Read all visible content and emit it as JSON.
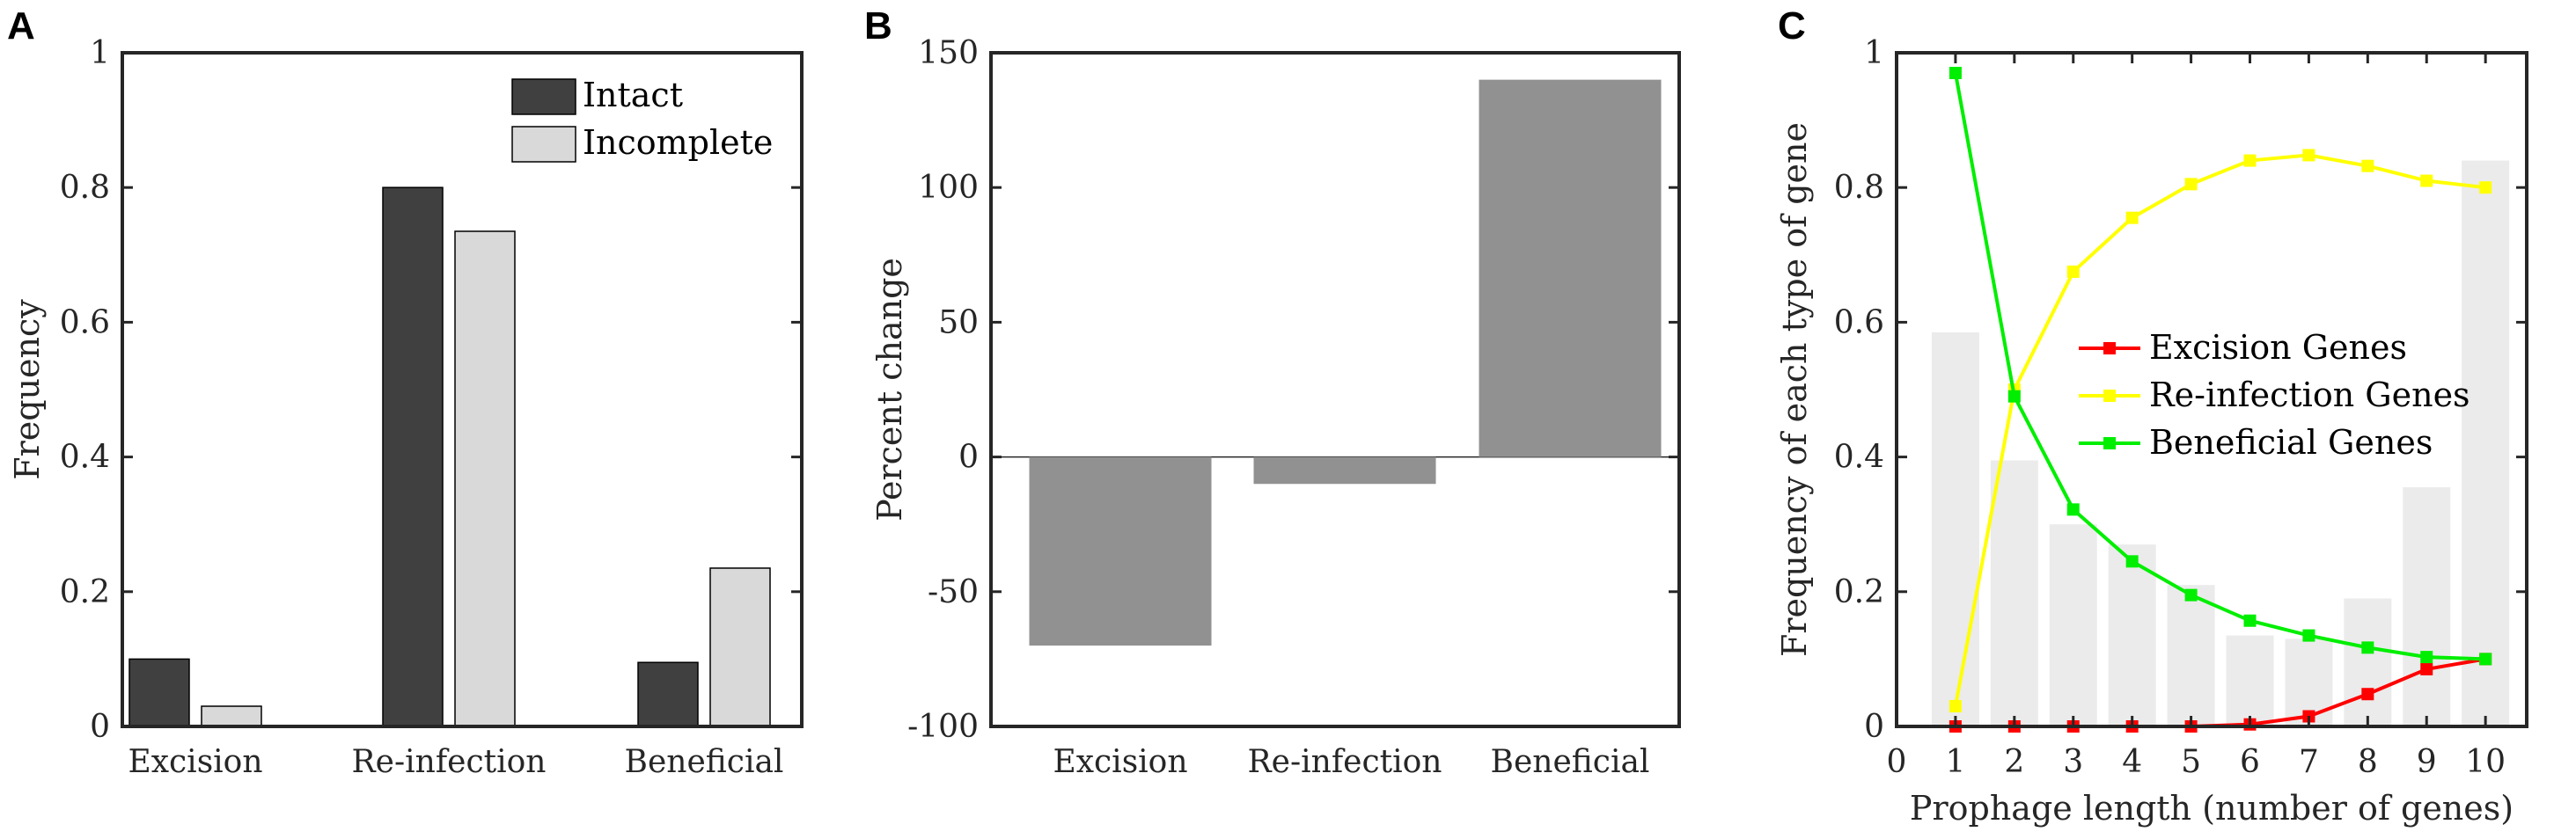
{
  "chart_data": [
    {
      "panel": "A",
      "type": "bar",
      "categories": [
        "Excision",
        "Re-infection",
        "Beneficial"
      ],
      "series": [
        {
          "name": "Intact",
          "values": [
            0.1,
            0.8,
            0.095
          ],
          "color": "#404040"
        },
        {
          "name": "Incomplete",
          "values": [
            0.03,
            0.735,
            0.235
          ],
          "color": "#d9d9d9"
        }
      ],
      "ylabel": "Frequency",
      "xlabel": "",
      "ylim": [
        0,
        1
      ],
      "yticks": [
        "0",
        "0.2",
        "0.4",
        "0.6",
        "0.8",
        "1"
      ],
      "legend": "top-right",
      "grid": false
    },
    {
      "panel": "B",
      "type": "bar",
      "categories": [
        "Excision",
        "Re-infection",
        "Beneficial"
      ],
      "values": [
        -70,
        -10,
        140
      ],
      "color": "#919191",
      "ylabel": "Percent change",
      "xlabel": "",
      "ylim": [
        -100,
        150
      ],
      "yticks": [
        "-100",
        "-50",
        "0",
        "50",
        "100",
        "150"
      ],
      "grid": false
    },
    {
      "panel": "C",
      "type": "line",
      "x": [
        1,
        2,
        3,
        4,
        5,
        6,
        7,
        8,
        9,
        10
      ],
      "bars": {
        "values": [
          0.585,
          0.395,
          0.3,
          0.27,
          0.21,
          0.135,
          0.13,
          0.19,
          0.355,
          0.84
        ],
        "color": "#ebebeb"
      },
      "series": [
        {
          "name": "Excision Genes",
          "values": [
            0,
            0,
            0,
            0,
            0,
            0.003,
            0.015,
            0.048,
            0.085,
            0.1
          ],
          "color": "#ff0000"
        },
        {
          "name": "Re-infection Genes",
          "values": [
            0.03,
            0.5,
            0.675,
            0.755,
            0.805,
            0.84,
            0.848,
            0.832,
            0.81,
            0.8
          ],
          "color": "#ffff00"
        },
        {
          "name": "Beneficial Genes",
          "values": [
            0.97,
            0.49,
            0.322,
            0.245,
            0.195,
            0.157,
            0.135,
            0.117,
            0.103,
            0.1
          ],
          "color": "#00ee00"
        }
      ],
      "xlabel": "Prophage length (number of genes)",
      "ylabel": "Frequency of each type of gene",
      "xlim": [
        0,
        10.7
      ],
      "ylim": [
        0,
        1
      ],
      "xticks": [
        "0",
        "1",
        "2",
        "3",
        "4",
        "5",
        "6",
        "7",
        "8",
        "9",
        "10"
      ],
      "yticks": [
        "0",
        "0.2",
        "0.4",
        "0.6",
        "0.8",
        "1"
      ],
      "legend": "center-right",
      "grid": false
    }
  ]
}
